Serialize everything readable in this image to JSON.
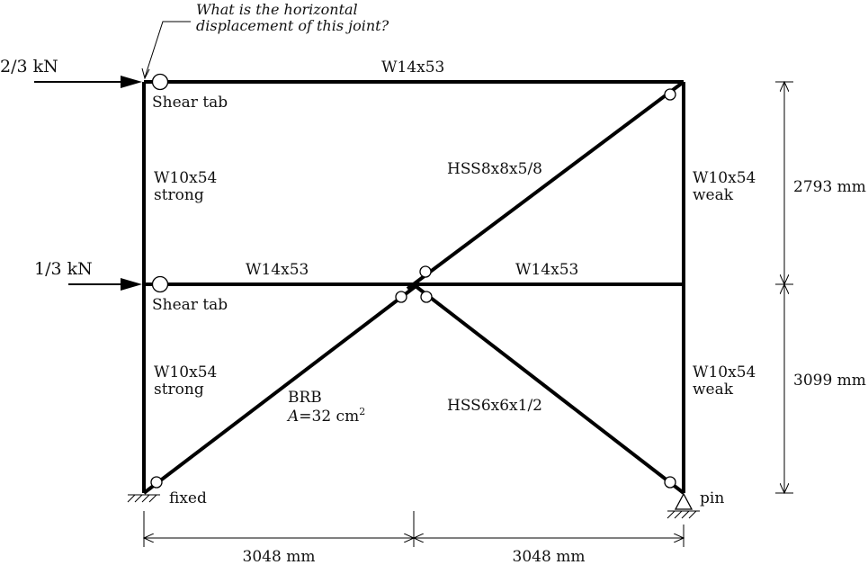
{
  "annotation": {
    "line1": "What is the horizontal",
    "line2": "displacement of this joint?"
  },
  "loads": {
    "top": "2/3 kN",
    "mid": "1/3 kN"
  },
  "beams": {
    "roof": "W14x53",
    "floor_left": "W14x53",
    "floor_right": "W14x53"
  },
  "connections": {
    "top_left": "Shear tab",
    "mid_left": "Shear tab"
  },
  "columns": {
    "left_upper": {
      "section": "W10x54",
      "axis": "strong"
    },
    "left_lower": {
      "section": "W10x54",
      "axis": "strong"
    },
    "right_upper": {
      "section": "W10x54",
      "axis": "weak"
    },
    "right_lower": {
      "section": "W10x54",
      "axis": "weak"
    }
  },
  "braces": {
    "upper": "HSS8x8x5/8",
    "lower_right": "HSS6x6x1/2",
    "brb_name": "BRB",
    "brb_area_var": "A",
    "brb_area_value": "=32 cm",
    "brb_area_exp": "2"
  },
  "supports": {
    "left": "fixed",
    "right": "pin"
  },
  "dimensions": {
    "story_upper": "2793 mm",
    "story_lower": "3099 mm",
    "bay_left": "3048 mm",
    "bay_right": "3048 mm"
  }
}
